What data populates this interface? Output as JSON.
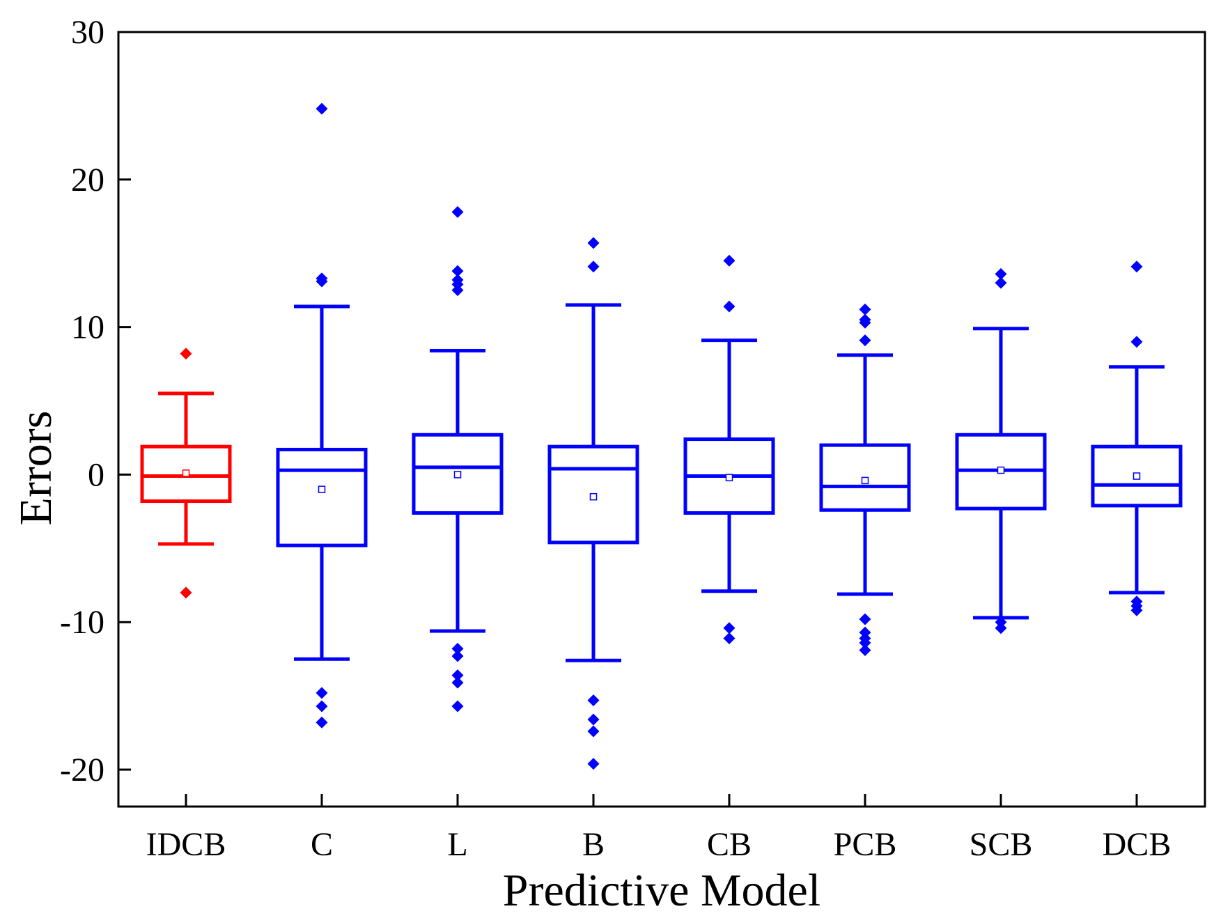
{
  "chart_data": {
    "type": "box",
    "xlabel": "Predictive Model",
    "ylabel": "Errors",
    "ylim": [
      -22.5,
      30
    ],
    "yticks": [
      -20,
      -10,
      0,
      10,
      20,
      30
    ],
    "categories": [
      "IDCB",
      "C",
      "L",
      "B",
      "CB",
      "PCB",
      "SCB",
      "DCB"
    ],
    "colors": {
      "highlight": "#ff0000",
      "default": "#0000ff",
      "axis": "#000000"
    },
    "boxes": [
      {
        "category": "IDCB",
        "color": "#ff0000",
        "whisker_low": -4.7,
        "q1": -1.8,
        "median": -0.1,
        "q3": 1.9,
        "whisker_high": 5.5,
        "mean": 0.1,
        "outliers": [
          8.2,
          -8.0
        ]
      },
      {
        "category": "C",
        "color": "#0000ff",
        "whisker_low": -12.5,
        "q1": -4.8,
        "median": 0.3,
        "q3": 1.7,
        "whisker_high": 11.4,
        "mean": -1.0,
        "outliers": [
          24.8,
          13.3,
          13.1,
          -14.8,
          -15.7,
          -16.8
        ]
      },
      {
        "category": "L",
        "color": "#0000ff",
        "whisker_low": -10.6,
        "q1": -2.6,
        "median": 0.5,
        "q3": 2.7,
        "whisker_high": 8.4,
        "mean": 0.0,
        "outliers": [
          17.8,
          13.8,
          13.2,
          12.9,
          12.5,
          -11.8,
          -12.3,
          -13.6,
          -14.1,
          -15.7
        ]
      },
      {
        "category": "B",
        "color": "#0000ff",
        "whisker_low": -12.6,
        "q1": -4.6,
        "median": 0.4,
        "q3": 1.9,
        "whisker_high": 11.5,
        "mean": -1.5,
        "outliers": [
          15.7,
          14.1,
          -15.3,
          -16.6,
          -17.4,
          -19.6
        ]
      },
      {
        "category": "CB",
        "color": "#0000ff",
        "whisker_low": -7.9,
        "q1": -2.6,
        "median": -0.1,
        "q3": 2.4,
        "whisker_high": 9.1,
        "mean": -0.2,
        "outliers": [
          14.5,
          11.4,
          -10.4,
          -11.1
        ]
      },
      {
        "category": "PCB",
        "color": "#0000ff",
        "whisker_low": -8.1,
        "q1": -2.4,
        "median": -0.8,
        "q3": 2.0,
        "whisker_high": 8.1,
        "mean": -0.4,
        "outliers": [
          11.2,
          10.5,
          10.3,
          9.1,
          -9.8,
          -10.7,
          -11.1,
          -11.4,
          -11.9
        ]
      },
      {
        "category": "SCB",
        "color": "#0000ff",
        "whisker_low": -9.7,
        "q1": -2.3,
        "median": 0.3,
        "q3": 2.7,
        "whisker_high": 9.9,
        "mean": 0.3,
        "outliers": [
          13.6,
          13.0,
          -10.0,
          -10.4
        ]
      },
      {
        "category": "DCB",
        "color": "#0000ff",
        "whisker_low": -8.0,
        "q1": -2.1,
        "median": -0.7,
        "q3": 1.9,
        "whisker_high": 7.3,
        "mean": -0.1,
        "outliers": [
          14.1,
          9.0,
          -8.6,
          -8.9,
          -9.2
        ]
      }
    ]
  }
}
